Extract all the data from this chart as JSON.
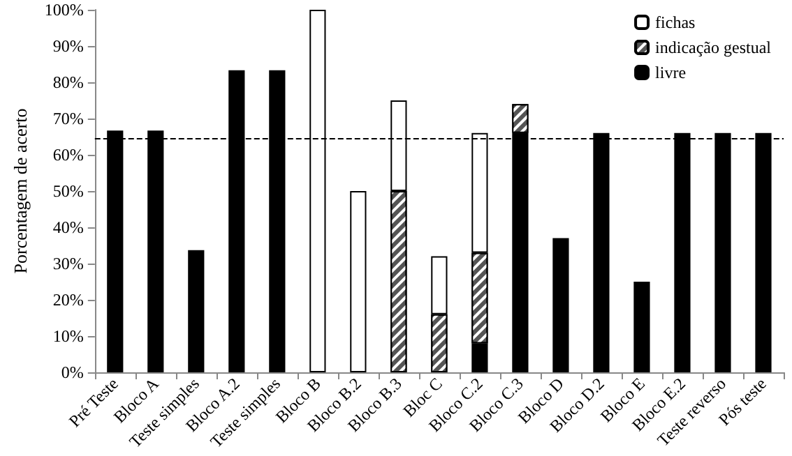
{
  "chart_data": {
    "type": "bar",
    "stacked": true,
    "ylabel": "Porcentagem de acerto",
    "categories": [
      "Pré Teste",
      "Bloco A",
      "Teste simples",
      "Bloco A.2",
      "Teste simples",
      "Bloco B",
      "Bloco B.2",
      "Bloco B.3",
      "Bloc C",
      "Bloco C.2",
      "Bloco C.3",
      "Bloco D",
      "Bloco D.2",
      "Bloco E",
      "Bloco E.2",
      "Teste reverso",
      "Pós teste"
    ],
    "series": [
      {
        "name": "livre",
        "color": "#000000",
        "values": [
          66.7,
          66.7,
          33.7,
          83.3,
          83.3,
          null,
          null,
          null,
          null,
          8,
          66,
          37,
          66,
          25,
          66,
          66,
          66
        ]
      },
      {
        "name": "indicação gestual",
        "color": "#555555",
        "values": [
          null,
          null,
          null,
          null,
          null,
          null,
          null,
          50,
          16,
          25,
          8,
          null,
          null,
          null,
          null,
          null,
          null
        ]
      },
      {
        "name": "fichas",
        "color": "#ffffff",
        "values": [
          null,
          null,
          null,
          null,
          null,
          100,
          50,
          25,
          16,
          33,
          null,
          null,
          null,
          null,
          null,
          null,
          null
        ]
      }
    ],
    "ylim": [
      0,
      100
    ],
    "yticks": [
      {
        "value": 0,
        "label": "0%"
      },
      {
        "value": 10,
        "label": "10%"
      },
      {
        "value": 20,
        "label": "20%"
      },
      {
        "value": 30,
        "label": "30%"
      },
      {
        "value": 40,
        "label": "40%"
      },
      {
        "value": 50,
        "label": "50%"
      },
      {
        "value": 60,
        "label": "60%"
      },
      {
        "value": 70,
        "label": "70%"
      },
      {
        "value": 80,
        "label": "80%"
      },
      {
        "value": 90,
        "label": "90%"
      },
      {
        "value": 100,
        "label": "100%"
      }
    ],
    "ref_lines": [
      {
        "axis": "y",
        "value": 64.5,
        "color": "#000000",
        "line_style": "dashed"
      }
    ],
    "legend": "top right",
    "grid": false
  }
}
